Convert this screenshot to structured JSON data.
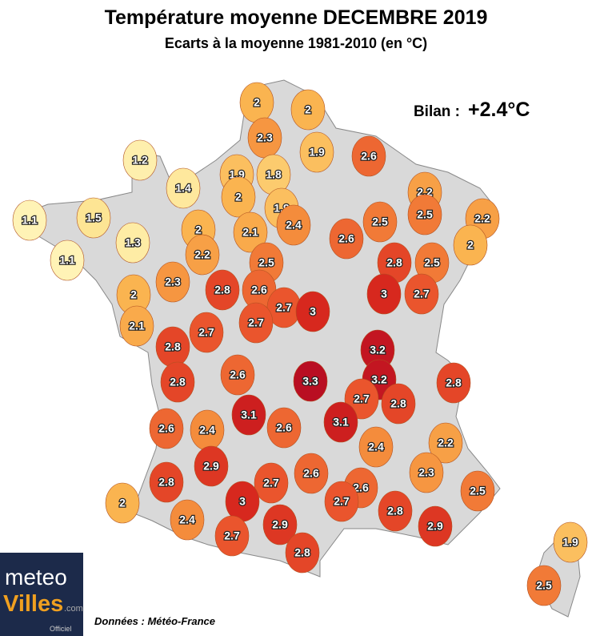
{
  "header": {
    "title": "Température moyenne DECEMBRE 2019",
    "subtitle": "Ecarts à la moyenne 1981-2010 (en °C)"
  },
  "summary": {
    "label": "Bilan :",
    "value": "+2.4°C"
  },
  "source": "Données : Météo-France",
  "logo": {
    "part1": "meteo",
    "part2": "Villes",
    "suffix": ".com",
    "tag": "Officiel"
  },
  "markers": [
    {
      "value": 2
    },
    {
      "value": 2
    },
    {
      "value": 2.3
    },
    {
      "value": 1.9
    },
    {
      "value": 2.6
    },
    {
      "value": 1.2
    },
    {
      "value": 1.9
    },
    {
      "value": 1.8
    },
    {
      "value": 1.4
    },
    {
      "value": 2
    },
    {
      "value": 2.2
    },
    {
      "value": 1.9
    },
    {
      "value": 1.1
    },
    {
      "value": 1.5
    },
    {
      "value": 2.4
    },
    {
      "value": 2.5
    },
    {
      "value": 2.5
    },
    {
      "value": 2.2
    },
    {
      "value": 2
    },
    {
      "value": 2.1
    },
    {
      "value": 2.6
    },
    {
      "value": 1.3
    },
    {
      "value": 2
    },
    {
      "value": 2.2
    },
    {
      "value": 1.1
    },
    {
      "value": 2.5
    },
    {
      "value": 2.8
    },
    {
      "value": 2.5
    },
    {
      "value": 2.3
    },
    {
      "value": 2.8
    },
    {
      "value": 2.6
    },
    {
      "value": 2
    },
    {
      "value": 3
    },
    {
      "value": 2.7
    },
    {
      "value": 2.7
    },
    {
      "value": 3
    },
    {
      "value": 2.1
    },
    {
      "value": 2.7
    },
    {
      "value": 2.7
    },
    {
      "value": 2.8
    },
    {
      "value": 3.2
    },
    {
      "value": 3.3
    },
    {
      "value": 3.2
    },
    {
      "value": 2.6
    },
    {
      "value": 2.8
    },
    {
      "value": 2.8
    },
    {
      "value": 2.7
    },
    {
      "value": 2.8
    },
    {
      "value": 3.1
    },
    {
      "value": 3.1
    },
    {
      "value": 2.6
    },
    {
      "value": 2.4
    },
    {
      "value": 2.6
    },
    {
      "value": 2.4
    },
    {
      "value": 2.2
    },
    {
      "value": 2.9
    },
    {
      "value": 2.3
    },
    {
      "value": 2.6
    },
    {
      "value": 2.8
    },
    {
      "value": 2.7
    },
    {
      "value": 2.5
    },
    {
      "value": 2
    },
    {
      "value": 2.6
    },
    {
      "value": 3
    },
    {
      "value": 2.7
    },
    {
      "value": 2.8
    },
    {
      "value": 2.4
    },
    {
      "value": 2.9
    },
    {
      "value": 2.9
    },
    {
      "value": 2.7
    },
    {
      "value": 1.9
    },
    {
      "value": 2.8
    },
    {
      "value": 2.5
    }
  ]
}
